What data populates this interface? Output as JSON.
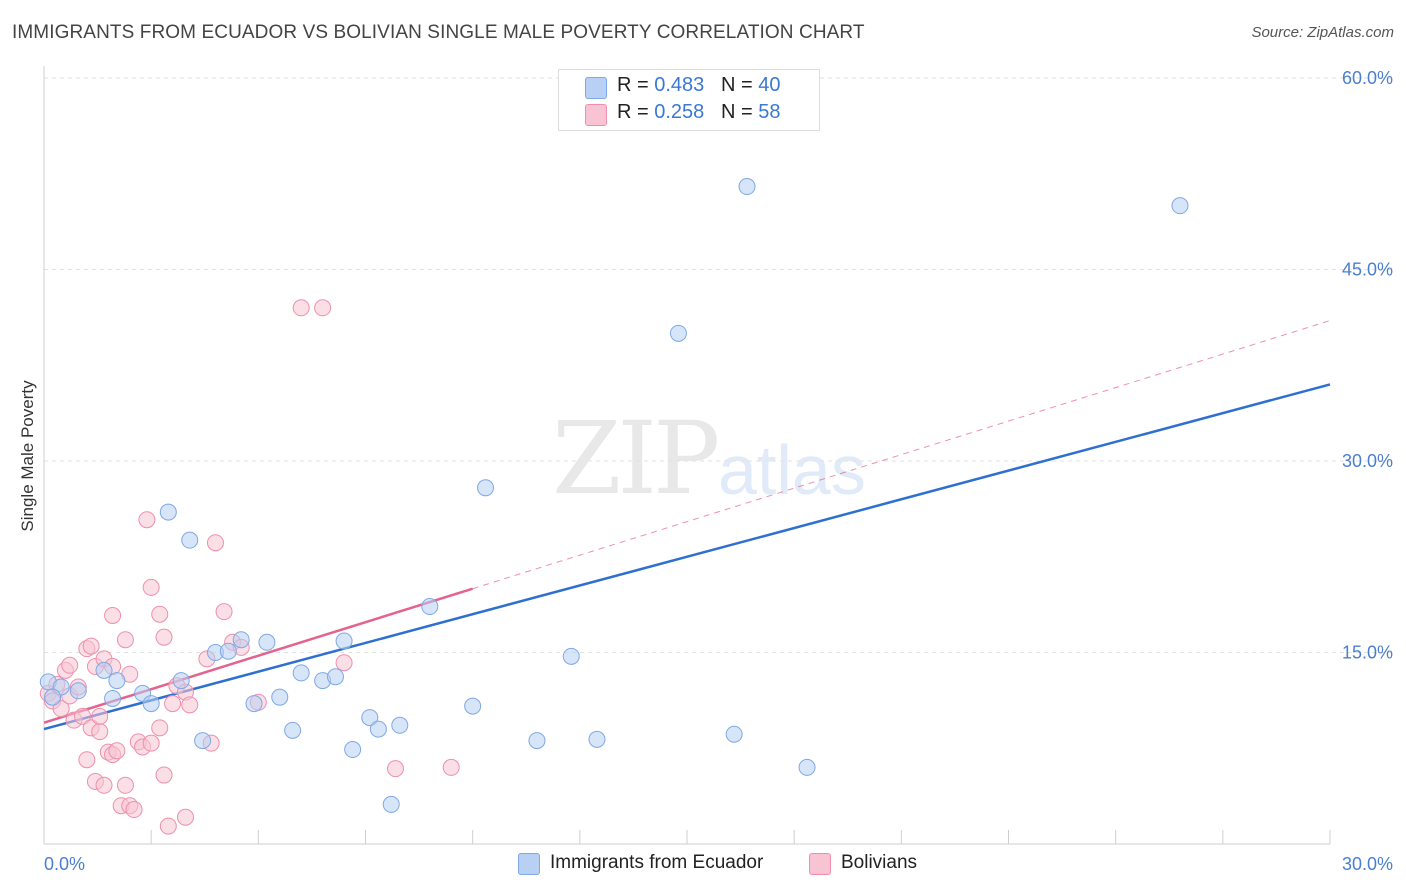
{
  "title": "IMMIGRANTS FROM ECUADOR VS BOLIVIAN SINGLE MALE POVERTY CORRELATION CHART",
  "source": "Source: ZipAtlas.com",
  "watermark": {
    "zip": "ZIP",
    "atlas": "atlas"
  },
  "colors": {
    "ecuador_fill": "#b7d0f3",
    "ecuador_stroke": "#7fa8e6",
    "ecuador_line": "#2f6fd0",
    "bolivian_fill": "#f8c4d3",
    "bolivian_stroke": "#ee8fad",
    "bolivian_line": "#e4638e",
    "axis_text": "#4a7fd0"
  },
  "legend": {
    "ecuador": {
      "r_label": "R = ",
      "r_value": "0.483",
      "n_label": "N = ",
      "n_value": "40"
    },
    "bolivian": {
      "r_label": "R = ",
      "r_value": "0.258",
      "n_label": "N = ",
      "n_value": "58"
    }
  },
  "bottom_legend": {
    "ecuador": "Immigrants from Ecuador",
    "bolivian": "Bolivians"
  },
  "chart_data": {
    "type": "scatter",
    "title": "IMMIGRANTS FROM ECUADOR VS BOLIVIAN SINGLE MALE POVERTY CORRELATION CHART",
    "xlabel": "",
    "ylabel": "Single Male Poverty",
    "xlim": [
      0,
      30
    ],
    "ylim": [
      0,
      60
    ],
    "x_tick_labels": [
      "0.0%",
      "30.0%"
    ],
    "y_ticks": [
      15,
      30,
      45,
      60
    ],
    "y_tick_labels": [
      "15.0%",
      "30.0%",
      "45.0%",
      "60.0%"
    ],
    "series": [
      {
        "name": "Immigrants from Ecuador",
        "r": 0.483,
        "n": 40,
        "trend": {
          "x0": 0,
          "y0": 9.0,
          "x1": 30,
          "y1": 36.0
        },
        "points": [
          [
            0.1,
            12.7
          ],
          [
            0.4,
            12.3
          ],
          [
            0.8,
            12.0
          ],
          [
            1.4,
            13.6
          ],
          [
            1.7,
            12.8
          ],
          [
            1.6,
            11.4
          ],
          [
            2.3,
            11.8
          ],
          [
            2.5,
            11.0
          ],
          [
            2.9,
            26.0
          ],
          [
            3.2,
            12.8
          ],
          [
            3.4,
            23.8
          ],
          [
            3.7,
            8.1
          ],
          [
            4.0,
            15.0
          ],
          [
            4.3,
            15.1
          ],
          [
            4.6,
            16.0
          ],
          [
            4.9,
            11.0
          ],
          [
            5.2,
            15.8
          ],
          [
            5.5,
            11.5
          ],
          [
            5.8,
            8.9
          ],
          [
            6.0,
            13.4
          ],
          [
            6.5,
            12.8
          ],
          [
            6.8,
            13.1
          ],
          [
            7.0,
            15.9
          ],
          [
            7.2,
            7.4
          ],
          [
            7.6,
            9.9
          ],
          [
            7.8,
            9.0
          ],
          [
            8.1,
            3.1
          ],
          [
            8.3,
            9.3
          ],
          [
            9.0,
            18.6
          ],
          [
            10.0,
            10.8
          ],
          [
            10.3,
            27.9
          ],
          [
            11.5,
            8.1
          ],
          [
            12.3,
            14.7
          ],
          [
            12.9,
            8.2
          ],
          [
            14.8,
            40.0
          ],
          [
            16.1,
            8.6
          ],
          [
            16.4,
            51.5
          ],
          [
            17.8,
            6.0
          ],
          [
            26.5,
            50.0
          ],
          [
            0.2,
            11.5
          ]
        ]
      },
      {
        "name": "Bolivians",
        "r": 0.258,
        "n": 58,
        "trend_solid": {
          "x0": 0,
          "y0": 9.5,
          "x1": 10,
          "y1": 20.0
        },
        "trend_dashed": {
          "x0": 10,
          "y0": 20.0,
          "x1": 30,
          "y1": 41.0
        },
        "points": [
          [
            0.1,
            11.8
          ],
          [
            0.2,
            11.2
          ],
          [
            0.3,
            12.5
          ],
          [
            0.4,
            10.6
          ],
          [
            0.5,
            13.6
          ],
          [
            0.6,
            11.6
          ],
          [
            0.6,
            14.0
          ],
          [
            0.7,
            9.7
          ],
          [
            0.8,
            12.3
          ],
          [
            0.9,
            10.0
          ],
          [
            1.0,
            15.3
          ],
          [
            1.0,
            6.6
          ],
          [
            1.1,
            15.5
          ],
          [
            1.1,
            9.1
          ],
          [
            1.2,
            4.9
          ],
          [
            1.2,
            13.9
          ],
          [
            1.3,
            8.8
          ],
          [
            1.3,
            10.0
          ],
          [
            1.4,
            4.6
          ],
          [
            1.4,
            14.5
          ],
          [
            1.5,
            7.2
          ],
          [
            1.6,
            17.9
          ],
          [
            1.6,
            7.0
          ],
          [
            1.7,
            7.3
          ],
          [
            1.8,
            3.0
          ],
          [
            1.9,
            16.0
          ],
          [
            1.9,
            4.6
          ],
          [
            2.0,
            13.3
          ],
          [
            2.0,
            3.0
          ],
          [
            2.1,
            2.7
          ],
          [
            2.2,
            8.0
          ],
          [
            2.3,
            7.6
          ],
          [
            2.4,
            25.4
          ],
          [
            2.5,
            7.9
          ],
          [
            2.5,
            20.1
          ],
          [
            2.7,
            18.0
          ],
          [
            2.7,
            9.1
          ],
          [
            2.8,
            16.2
          ],
          [
            2.8,
            5.4
          ],
          [
            2.9,
            1.4
          ],
          [
            3.0,
            11.0
          ],
          [
            3.1,
            12.4
          ],
          [
            3.3,
            11.9
          ],
          [
            3.3,
            2.1
          ],
          [
            3.4,
            10.9
          ],
          [
            3.8,
            14.5
          ],
          [
            3.9,
            7.9
          ],
          [
            4.0,
            23.6
          ],
          [
            4.2,
            18.2
          ],
          [
            4.4,
            15.8
          ],
          [
            4.6,
            15.4
          ],
          [
            5.0,
            11.1
          ],
          [
            6.0,
            42.0
          ],
          [
            6.5,
            42.0
          ],
          [
            7.0,
            14.2
          ],
          [
            8.2,
            5.9
          ],
          [
            9.5,
            6.0
          ],
          [
            1.6,
            13.9
          ]
        ]
      }
    ]
  }
}
